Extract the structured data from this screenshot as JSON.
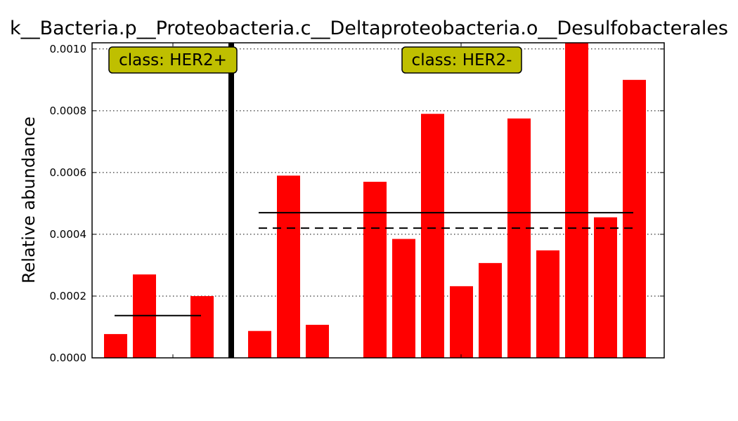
{
  "chart_data": {
    "type": "bar",
    "title": "k__Bacteria.p__Proteobacteria.c__Deltaproteobacteria.o__Desulfobacterales",
    "ylabel": "Relative abundance",
    "xlabel": "",
    "ylim": [
      0,
      0.00102
    ],
    "yticks": [
      "0.0000",
      "0.0002",
      "0.0004",
      "0.0006",
      "0.0008",
      "0.0010"
    ],
    "ytick_values": [
      0,
      0.0002,
      0.0004,
      0.0006,
      0.0008,
      0.001
    ],
    "grid": "horizontal-dotted",
    "bar_color": "#ff0000",
    "class_box_color": "#bfbf00",
    "classes": [
      {
        "label": "class: HER2+",
        "values": [
          7.7e-05,
          0.00027,
          0,
          0.0002
        ],
        "mean": 0.000137,
        "median": null
      },
      {
        "label": "class: HER2-",
        "values": [
          8.7e-05,
          0.00059,
          0.000107,
          0,
          0.00057,
          0.000385,
          0.00079,
          0.000232,
          0.000307,
          0.000775,
          0.000348,
          0.00103,
          0.000455,
          0.0009
        ],
        "mean": 0.00047,
        "median": 0.00042
      }
    ]
  }
}
